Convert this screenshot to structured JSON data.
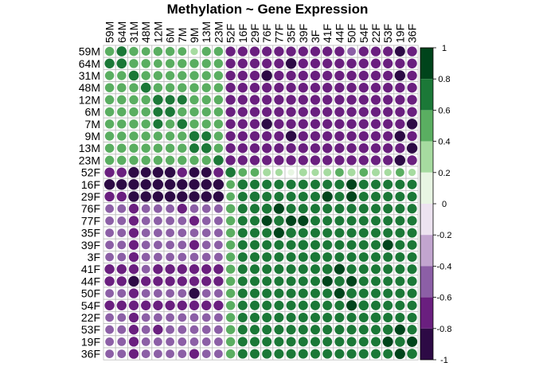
{
  "chart_data": {
    "type": "heatmap",
    "title": "Methylation ~ Gene Expression",
    "rows": [
      "59M",
      "64M",
      "31M",
      "48M",
      "12M",
      "6M",
      "7M",
      "9M",
      "13M",
      "23M",
      "52F",
      "16F",
      "29F",
      "76F",
      "77F",
      "35F",
      "39F",
      "3F",
      "41F",
      "44F",
      "50F",
      "54F",
      "22F",
      "53F",
      "19F",
      "36F"
    ],
    "columns": [
      "59M",
      "64M",
      "31M",
      "48M",
      "12M",
      "6M",
      "7M",
      "9M",
      "13M",
      "23M",
      "52F",
      "16F",
      "29F",
      "76F",
      "77F",
      "35F",
      "39F",
      "3F",
      "41F",
      "44F",
      "50F",
      "54F",
      "22F",
      "53F",
      "19F",
      "36F"
    ],
    "color_scale": {
      "min": -1,
      "max": 1,
      "ticks": [
        "1",
        "0.8",
        "0.6",
        "0.4",
        "0.2",
        "0",
        "-0.2",
        "-0.4",
        "-0.6",
        "-0.8",
        "-1"
      ],
      "breaks": [
        -1,
        -0.8,
        -0.6,
        -0.4,
        -0.2,
        0,
        0.2,
        0.4,
        0.6,
        0.8,
        1
      ],
      "colors": [
        "#2d0a45",
        "#6a1f7f",
        "#8c5fa6",
        "#c2a5cf",
        "#ede3f0",
        "#e8f5e3",
        "#a6dba0",
        "#5aae61",
        "#1b7837",
        "#00441b"
      ]
    },
    "values": [
      [
        0.6,
        0.8,
        0.6,
        0.5,
        0.6,
        0.6,
        0.5,
        0.3,
        0.6,
        0.6,
        -0.75,
        -0.75,
        -0.75,
        -0.75,
        -0.75,
        -0.75,
        -0.75,
        -0.75,
        -0.75,
        -0.75,
        -0.5,
        -0.75,
        -0.75,
        -0.75,
        -0.85,
        -0.75
      ],
      [
        0.75,
        0.8,
        0.6,
        0.6,
        0.5,
        0.6,
        0.6,
        0.6,
        0.6,
        0.6,
        -0.75,
        -0.75,
        -0.75,
        -0.75,
        -0.75,
        -0.95,
        -0.75,
        -0.75,
        -0.75,
        -0.75,
        -0.75,
        -0.75,
        -0.75,
        -0.75,
        -0.75,
        -0.75
      ],
      [
        0.6,
        0.6,
        0.8,
        0.6,
        0.6,
        0.6,
        0.6,
        0.6,
        0.6,
        0.6,
        -0.75,
        -0.75,
        -0.75,
        -0.95,
        -0.75,
        -0.75,
        -0.75,
        -0.75,
        -0.75,
        -0.75,
        -0.75,
        -0.75,
        -0.75,
        -0.75,
        -0.95,
        -0.75
      ],
      [
        0.6,
        0.6,
        0.6,
        0.8,
        0.6,
        0.6,
        0.6,
        0.6,
        0.6,
        0.6,
        -0.75,
        -0.75,
        -0.75,
        -0.75,
        -0.75,
        -0.75,
        -0.75,
        -0.75,
        -0.75,
        -0.75,
        -0.75,
        -0.75,
        -0.75,
        -0.75,
        -0.75,
        -0.75
      ],
      [
        0.6,
        0.6,
        0.6,
        0.6,
        0.8,
        0.7,
        0.7,
        0.6,
        0.6,
        0.6,
        -0.75,
        -0.75,
        -0.75,
        -0.75,
        -0.75,
        -0.75,
        -0.75,
        -0.75,
        -0.75,
        -0.75,
        -0.75,
        -0.75,
        -0.75,
        -0.75,
        -0.75,
        -0.75
      ],
      [
        0.6,
        0.6,
        0.6,
        0.6,
        0.7,
        0.8,
        0.6,
        0.6,
        0.6,
        0.6,
        -0.75,
        -0.75,
        -0.75,
        -0.75,
        -0.75,
        -0.75,
        -0.75,
        -0.75,
        -0.75,
        -0.75,
        -0.75,
        -0.75,
        -0.75,
        -0.75,
        -0.75,
        -0.75
      ],
      [
        0.6,
        0.6,
        0.6,
        0.6,
        0.7,
        0.6,
        0.8,
        0.6,
        0.6,
        0.6,
        -0.75,
        -0.75,
        -0.75,
        -0.95,
        -0.75,
        -0.75,
        -0.75,
        -0.75,
        -0.75,
        -0.75,
        -0.75,
        -0.75,
        -0.75,
        -0.75,
        -0.75,
        -0.95
      ],
      [
        0.6,
        0.6,
        0.6,
        0.6,
        0.6,
        0.6,
        0.6,
        0.8,
        0.7,
        0.6,
        -0.75,
        -0.75,
        -0.75,
        -0.75,
        -0.75,
        -0.95,
        -0.75,
        -0.75,
        -0.75,
        -0.75,
        -0.75,
        -0.75,
        -0.75,
        -0.75,
        -0.95,
        -0.75
      ],
      [
        0.6,
        0.6,
        0.6,
        0.6,
        0.6,
        0.6,
        0.6,
        0.7,
        0.8,
        0.6,
        -0.75,
        -0.75,
        -0.75,
        -0.75,
        -0.75,
        -0.75,
        -0.75,
        -0.75,
        -0.75,
        -0.75,
        -0.75,
        -0.75,
        -0.75,
        -0.75,
        -0.75,
        -0.95
      ],
      [
        0.6,
        0.6,
        0.6,
        0.6,
        0.6,
        0.6,
        0.6,
        0.6,
        0.6,
        0.8,
        -0.75,
        -0.75,
        -0.75,
        -0.75,
        -0.75,
        -0.75,
        -0.75,
        -0.75,
        -0.75,
        -0.75,
        -0.75,
        -0.75,
        -0.75,
        -0.75,
        -0.95,
        -0.75
      ],
      [
        -0.75,
        -0.75,
        -0.95,
        -0.85,
        -0.95,
        -0.95,
        -0.75,
        -0.85,
        -0.85,
        -0.75,
        0.8,
        0.5,
        0.5,
        0.4,
        0.3,
        0.2,
        0.4,
        0.3,
        0.4,
        0.5,
        0.4,
        0.5,
        0.4,
        0.3,
        0.5,
        0.3
      ],
      [
        -0.95,
        -0.95,
        -0.95,
        -0.95,
        -0.95,
        -0.95,
        -0.95,
        -0.95,
        -0.95,
        -0.95,
        0.5,
        0.8,
        0.7,
        0.7,
        0.7,
        0.7,
        0.7,
        0.7,
        0.7,
        0.7,
        0.9,
        0.7,
        0.7,
        0.7,
        0.7,
        0.7
      ],
      [
        -0.75,
        -0.75,
        -0.95,
        -0.95,
        -0.95,
        -0.95,
        -0.95,
        -0.95,
        -0.95,
        -0.95,
        0.5,
        0.7,
        0.8,
        0.7,
        0.7,
        0.7,
        0.7,
        0.7,
        0.9,
        0.7,
        0.9,
        0.7,
        0.7,
        0.7,
        0.7,
        0.7
      ],
      [
        -0.5,
        -0.5,
        -0.75,
        -0.5,
        -0.5,
        -0.5,
        -0.75,
        -0.5,
        -0.5,
        -0.5,
        0.6,
        0.7,
        0.7,
        0.8,
        0.9,
        0.7,
        0.7,
        0.7,
        0.7,
        0.7,
        0.7,
        0.7,
        0.7,
        0.7,
        0.7,
        0.7
      ],
      [
        -0.5,
        -0.5,
        -0.75,
        -0.5,
        -0.5,
        -0.5,
        -0.5,
        -0.75,
        -0.5,
        -0.5,
        0.6,
        0.7,
        0.7,
        0.9,
        0.8,
        0.9,
        0.9,
        0.7,
        0.7,
        0.7,
        0.7,
        0.7,
        0.7,
        0.7,
        0.7,
        0.7
      ],
      [
        -0.5,
        -0.5,
        -0.75,
        -0.5,
        -0.5,
        -0.5,
        -0.5,
        -0.5,
        -0.5,
        -0.5,
        0.6,
        0.7,
        0.7,
        0.7,
        0.9,
        0.8,
        0.7,
        0.7,
        0.7,
        0.7,
        0.7,
        0.7,
        0.7,
        0.7,
        0.7,
        0.7
      ],
      [
        -0.5,
        -0.5,
        -0.75,
        -0.5,
        -0.5,
        -0.5,
        -0.5,
        -0.75,
        -0.5,
        -0.5,
        0.6,
        0.7,
        0.7,
        0.7,
        0.7,
        0.7,
        0.8,
        0.7,
        0.7,
        0.7,
        0.7,
        0.7,
        0.7,
        0.9,
        0.7,
        0.7
      ],
      [
        -0.5,
        -0.5,
        -0.75,
        -0.5,
        -0.5,
        -0.5,
        -0.5,
        -0.5,
        -0.5,
        -0.5,
        0.6,
        0.7,
        0.7,
        0.7,
        0.7,
        0.7,
        0.7,
        0.8,
        0.7,
        0.7,
        0.7,
        0.7,
        0.7,
        0.7,
        0.7,
        0.7
      ],
      [
        -0.75,
        -0.75,
        -0.75,
        -0.5,
        -0.75,
        -0.75,
        -0.75,
        -0.75,
        -0.75,
        -0.75,
        0.6,
        0.7,
        0.7,
        0.7,
        0.7,
        0.7,
        0.7,
        0.7,
        0.8,
        0.9,
        0.7,
        0.7,
        0.7,
        0.7,
        0.7,
        0.7
      ],
      [
        -0.75,
        -0.75,
        -0.95,
        -0.75,
        -0.75,
        -0.75,
        -0.75,
        -0.75,
        -0.75,
        -0.75,
        0.6,
        0.7,
        0.7,
        0.7,
        0.7,
        0.7,
        0.7,
        0.7,
        0.9,
        0.8,
        0.9,
        0.7,
        0.7,
        0.7,
        0.7,
        0.7
      ],
      [
        -0.5,
        -0.5,
        -0.75,
        -0.5,
        -0.5,
        -0.5,
        -0.5,
        -0.95,
        -0.5,
        -0.5,
        0.6,
        0.7,
        0.7,
        0.7,
        0.7,
        0.7,
        0.7,
        0.7,
        0.7,
        0.9,
        0.8,
        0.7,
        0.7,
        0.7,
        0.7,
        0.7
      ],
      [
        -0.75,
        -0.75,
        -0.75,
        -0.75,
        -0.75,
        -0.75,
        -0.75,
        -0.75,
        -0.75,
        -0.75,
        0.6,
        0.7,
        0.7,
        0.7,
        0.7,
        0.7,
        0.7,
        0.7,
        0.7,
        0.7,
        0.9,
        0.8,
        0.7,
        0.7,
        0.7,
        0.7
      ],
      [
        -0.5,
        -0.5,
        -0.75,
        -0.5,
        -0.5,
        -0.5,
        -0.5,
        -0.5,
        -0.5,
        -0.5,
        0.6,
        0.7,
        0.7,
        0.7,
        0.7,
        0.7,
        0.7,
        0.7,
        0.7,
        0.7,
        0.7,
        0.7,
        0.8,
        0.7,
        0.7,
        0.7
      ],
      [
        -0.5,
        -0.5,
        -0.75,
        -0.5,
        -0.75,
        -0.5,
        -0.5,
        -0.5,
        -0.5,
        -0.5,
        0.6,
        0.7,
        0.7,
        0.7,
        0.7,
        0.7,
        0.7,
        0.7,
        0.7,
        0.7,
        0.7,
        0.7,
        0.7,
        0.8,
        0.9,
        0.7
      ],
      [
        -0.5,
        -0.5,
        -0.75,
        -0.5,
        -0.5,
        -0.5,
        -0.5,
        -0.5,
        -0.5,
        -0.5,
        0.6,
        0.7,
        0.7,
        0.7,
        0.7,
        0.7,
        0.7,
        0.7,
        0.7,
        0.7,
        0.7,
        0.7,
        0.7,
        0.9,
        0.8,
        0.9
      ],
      [
        -0.5,
        -0.5,
        -0.75,
        -0.5,
        -0.5,
        -0.5,
        -0.5,
        -0.75,
        -0.5,
        -0.5,
        0.6,
        0.7,
        0.7,
        0.7,
        0.7,
        0.7,
        0.7,
        0.7,
        0.7,
        0.7,
        0.7,
        0.7,
        0.7,
        0.7,
        0.9,
        0.8
      ]
    ]
  }
}
